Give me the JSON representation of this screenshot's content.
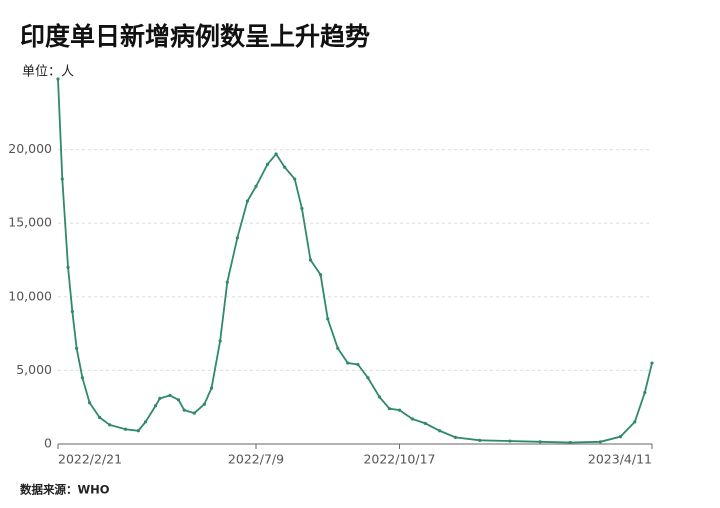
{
  "chart_data": {
    "type": "line",
    "title": "印度单日新增病例数呈上升趋势",
    "unit_label": "单位：人",
    "source": "数据来源：WHO",
    "x": [
      "2022/2/21",
      "2022/2/24",
      "2022/2/28",
      "2022/3/3",
      "2022/3/6",
      "2022/3/10",
      "2022/3/15",
      "2022/3/22",
      "2022/3/29",
      "2022/4/9",
      "2022/4/18",
      "2022/4/23",
      "2022/4/30",
      "2022/5/3",
      "2022/5/10",
      "2022/5/16",
      "2022/5/20",
      "2022/5/27",
      "2022/6/3",
      "2022/6/8",
      "2022/6/14",
      "2022/6/19",
      "2022/6/26",
      "2022/7/3",
      "2022/7/9",
      "2022/7/17",
      "2022/7/23",
      "2022/7/29",
      "2022/8/5",
      "2022/8/10",
      "2022/8/16",
      "2022/8/23",
      "2022/8/28",
      "2022/9/4",
      "2022/9/11",
      "2022/9/18",
      "2022/9/25",
      "2022/10/3",
      "2022/10/10",
      "2022/10/17",
      "2022/10/26",
      "2022/11/4",
      "2022/11/14",
      "2022/11/25",
      "2022/12/12",
      "2023/1/2",
      "2023/1/23",
      "2023/2/13",
      "2023/3/6",
      "2023/3/20",
      "2023/3/30",
      "2023/4/6",
      "2023/4/11"
    ],
    "series": [
      {
        "color": "#2f8a66",
        "values": [
          24800,
          18000,
          12000,
          9000,
          6500,
          4500,
          2800,
          1800,
          1300,
          1000,
          900,
          1500,
          2600,
          3100,
          3300,
          3000,
          2300,
          2100,
          2700,
          3800,
          7000,
          11000,
          14000,
          16500,
          17500,
          19000,
          19700,
          18800,
          18000,
          16000,
          12500,
          11500,
          8500,
          6500,
          5500,
          5400,
          4500,
          3200,
          2400,
          2300,
          1700,
          1400,
          900,
          450,
          250,
          200,
          150,
          100,
          150,
          500,
          1500,
          3500,
          5500
        ]
      }
    ],
    "xticks": [
      "2022/2/21",
      "2022/7/9",
      "2022/10/17",
      "2023/4/11"
    ],
    "ylim": [
      0,
      25000
    ],
    "yticks": [
      0,
      {
        "value": 5000,
        "label": "5,000"
      },
      {
        "value": 10000,
        "label": "10,000"
      },
      {
        "value": 15000,
        "label": "15,000"
      },
      {
        "value": 20000,
        "label": "20,000"
      }
    ],
    "grid": true
  }
}
